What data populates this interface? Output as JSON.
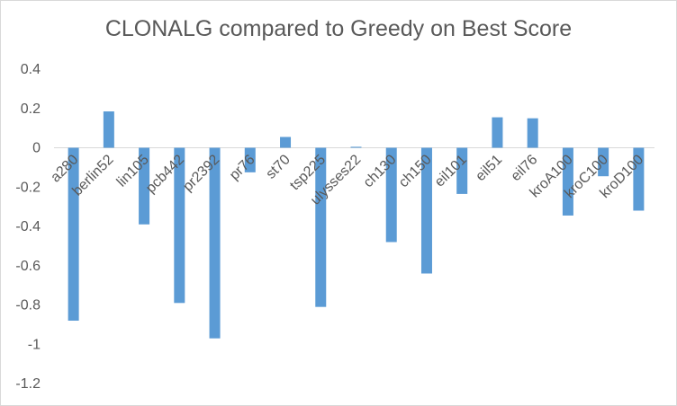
{
  "chart_data": {
    "type": "bar",
    "title": "CLONALG compared to Greedy on Best Score",
    "xlabel": "",
    "ylabel": "",
    "ylim": [
      -1.2,
      0.4
    ],
    "yticks": [
      0.4,
      0.2,
      0,
      -0.2,
      -0.4,
      -0.6,
      -0.8,
      -1,
      -1.2
    ],
    "grid": false,
    "legend": "none",
    "bar_color": "#5b9bd5",
    "categories": [
      "a280",
      "berlin52",
      "lin105",
      "pcb442",
      "pr2392",
      "pr76",
      "st70",
      "tsp225",
      "ulysses22",
      "ch130",
      "ch150",
      "eil101",
      "eil51",
      "eil76",
      "kroA100",
      "kroC100",
      "kroD100"
    ],
    "values": [
      -0.88,
      0.185,
      -0.39,
      -0.79,
      -0.97,
      -0.125,
      0.055,
      -0.81,
      0.005,
      -0.48,
      -0.64,
      -0.235,
      0.155,
      0.15,
      -0.345,
      -0.145,
      -0.32
    ]
  }
}
